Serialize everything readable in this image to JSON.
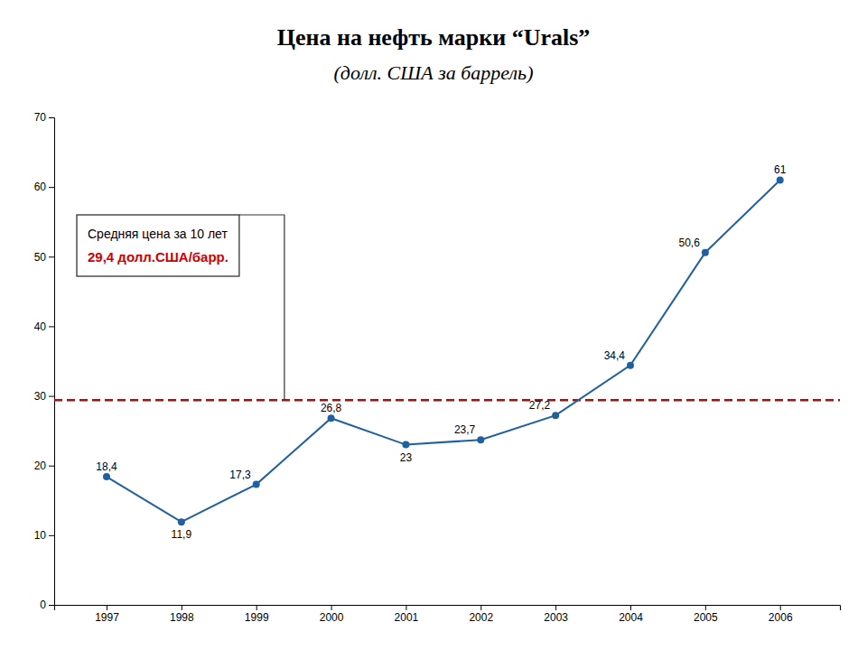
{
  "chart_data": {
    "type": "line",
    "title": "Цена на нефть марки “Urals”",
    "subtitle": "(долл. США за баррель)",
    "x": [
      1997,
      1998,
      1999,
      2000,
      2001,
      2002,
      2003,
      2004,
      2005,
      2006
    ],
    "values": [
      18.4,
      11.9,
      17.3,
      26.8,
      23.0,
      23.7,
      27.2,
      34.4,
      50.6,
      61.0
    ],
    "value_labels": [
      "18,4",
      "11,9",
      "17,3",
      "26,8",
      "23",
      "23,7",
      "27,2",
      "34,4",
      "50,6",
      "61"
    ],
    "data_labels": true,
    "color": "#2060a0",
    "marker": "circle",
    "line_style": "solid",
    "xlim": [
      1996.3,
      2006.8
    ],
    "xticks": [
      1997,
      1998,
      1999,
      2000,
      2001,
      2002,
      2003,
      2004,
      2005,
      2006
    ],
    "ylim": [
      0,
      70
    ],
    "yticks": [
      0,
      10,
      20,
      30,
      40,
      50,
      60,
      70
    ],
    "grid": false,
    "avg_line": {
      "value": 29.4,
      "color": "#8b1a1a",
      "line_style": "dashed"
    },
    "annotations": [
      {
        "text": "Средняя цена за 10 лет",
        "color": "#000000"
      },
      {
        "text": "29,4 долл.США/барр.",
        "color": "#cc0000"
      }
    ]
  }
}
